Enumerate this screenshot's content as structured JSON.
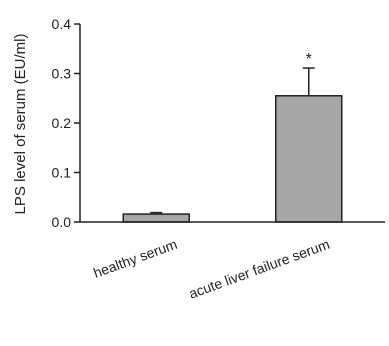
{
  "chart_data": {
    "type": "bar",
    "title": "",
    "xlabel": "",
    "ylabel": "LPS level of serum (EU/ml)",
    "ylim": [
      0,
      0.4
    ],
    "yticks": [
      "0.0",
      "0.1",
      "0.2",
      "0.3",
      "0.4"
    ],
    "categories": [
      "healthy  serum",
      "acute liver failure serum"
    ],
    "values": [
      0.016,
      0.255
    ],
    "errors": [
      0.003,
      0.056
    ],
    "bar_color": "#a6a6a6",
    "annotations": [
      {
        "category_index": 1,
        "text": "*"
      }
    ],
    "grid": false,
    "legend": "none"
  }
}
